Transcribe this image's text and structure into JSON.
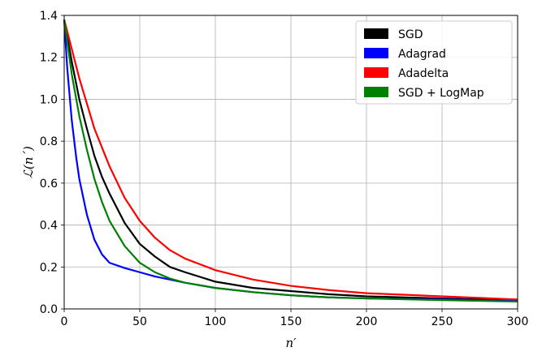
{
  "chart_data": {
    "type": "line",
    "title": "",
    "xlabel": "n′",
    "ylabel": "ℒ(n´)",
    "xlim": [
      0,
      300
    ],
    "ylim": [
      0,
      1.4
    ],
    "xticks": [
      0,
      50,
      100,
      150,
      200,
      250,
      300
    ],
    "yticks": [
      0.0,
      0.2,
      0.4,
      0.6,
      0.8,
      1.0,
      1.2,
      1.4
    ],
    "grid": true,
    "legend_position": "top-right",
    "series": [
      {
        "name": "SGD",
        "color": "#000000",
        "x": [
          0,
          5,
          10,
          15,
          20,
          25,
          30,
          40,
          50,
          60,
          70,
          80,
          100,
          125,
          150,
          175,
          200,
          250,
          300
        ],
        "y": [
          1.38,
          1.18,
          1.0,
          0.86,
          0.73,
          0.63,
          0.55,
          0.41,
          0.31,
          0.25,
          0.2,
          0.175,
          0.13,
          0.1,
          0.085,
          0.07,
          0.06,
          0.05,
          0.04
        ]
      },
      {
        "name": "Adagrad",
        "color": "#0000ff",
        "x": [
          0,
          2,
          5,
          8,
          10,
          15,
          20,
          25,
          30,
          40,
          50,
          60,
          70,
          80,
          100,
          125,
          150,
          175,
          200,
          250,
          300
        ],
        "y": [
          1.38,
          1.15,
          0.9,
          0.72,
          0.62,
          0.45,
          0.33,
          0.26,
          0.22,
          0.195,
          0.175,
          0.155,
          0.14,
          0.125,
          0.1,
          0.08,
          0.065,
          0.055,
          0.05,
          0.045,
          0.04
        ]
      },
      {
        "name": "Adadelta",
        "color": "#ff0000",
        "x": [
          0,
          5,
          10,
          20,
          30,
          40,
          50,
          60,
          70,
          80,
          100,
          125,
          150,
          175,
          200,
          250,
          300
        ],
        "y": [
          1.38,
          1.24,
          1.1,
          0.86,
          0.68,
          0.53,
          0.42,
          0.34,
          0.28,
          0.24,
          0.185,
          0.14,
          0.11,
          0.09,
          0.075,
          0.06,
          0.045
        ]
      },
      {
        "name": "SGD + LogMap",
        "color": "#008000",
        "x": [
          0,
          5,
          10,
          15,
          20,
          25,
          30,
          40,
          50,
          60,
          70,
          80,
          100,
          125,
          150,
          175,
          200,
          250,
          300
        ],
        "y": [
          1.38,
          1.12,
          0.92,
          0.76,
          0.62,
          0.51,
          0.42,
          0.3,
          0.22,
          0.175,
          0.145,
          0.125,
          0.1,
          0.08,
          0.065,
          0.055,
          0.05,
          0.042,
          0.035
        ]
      }
    ]
  }
}
